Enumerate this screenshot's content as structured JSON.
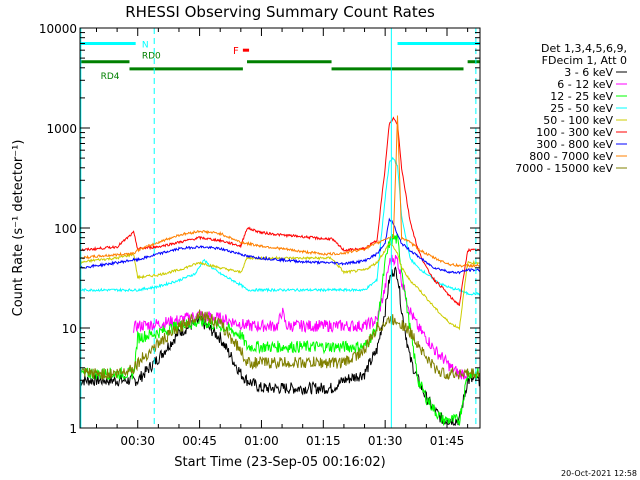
{
  "chart_data": {
    "type": "line",
    "title": "RHESSI Observing Summary Count Rates",
    "xlabel": "Start Time (23-Sep-05 00:16:02)",
    "ylabel": "Count Rate (s⁻¹ detector⁻¹)",
    "yscale": "log",
    "ylim": [
      1,
      10000
    ],
    "xlim_minutes": [
      16,
      113
    ],
    "x_ticks": [
      {
        "label": "00:30",
        "minutes": 30
      },
      {
        "label": "00:45",
        "minutes": 45
      },
      {
        "label": "01:00",
        "minutes": 60
      },
      {
        "label": "01:15",
        "minutes": 75
      },
      {
        "label": "01:30",
        "minutes": 90
      },
      {
        "label": "01:45",
        "minutes": 105
      }
    ],
    "y_ticks": [
      {
        "label": "1",
        "value": 1
      },
      {
        "label": "10",
        "value": 10
      },
      {
        "label": "100",
        "value": 100
      },
      {
        "label": "1000",
        "value": 1000
      },
      {
        "label": "10000",
        "value": 10000
      }
    ],
    "legend_header": [
      "Det 1,3,4,5,6,9,",
      "FDecim 1, Att 0"
    ],
    "legend_position": "right",
    "series": [
      {
        "name": "3 - 6 keV",
        "color": "#000000",
        "x": [
          16,
          20,
          25,
          29,
          30,
          35,
          40,
          45,
          50,
          55,
          56.5,
          60,
          65,
          70,
          75,
          77,
          80,
          85,
          88,
          90,
          91,
          92,
          93,
          94,
          96,
          98,
          100,
          102,
          104,
          106,
          108,
          110,
          113
        ],
        "y": [
          3,
          3,
          3,
          3,
          3,
          5,
          9,
          12,
          8,
          3.5,
          3,
          2.5,
          2.5,
          2.5,
          2.5,
          2.5,
          3,
          3.5,
          6,
          15,
          30,
          38,
          35,
          15,
          5,
          3,
          2,
          1.5,
          1.2,
          1.2,
          1.2,
          3,
          3
        ]
      },
      {
        "name": "6 - 12 keV",
        "color": "#ff00ff",
        "x": [
          29,
          30,
          35,
          40,
          45,
          50,
          55,
          56.5,
          60,
          64,
          65,
          66,
          70,
          75,
          77,
          80,
          85,
          88,
          90,
          91,
          92,
          93,
          94,
          96,
          98,
          100,
          102,
          104,
          106,
          108,
          110
        ],
        "y": [
          10,
          10.5,
          11,
          12,
          13.5,
          12.5,
          11,
          10.5,
          10.5,
          10.5,
          15,
          10.5,
          10.5,
          10.5,
          10.5,
          10.5,
          10.5,
          12,
          25,
          45,
          50,
          48,
          30,
          15,
          10,
          8,
          6,
          5,
          4,
          3.5,
          3.5
        ]
      },
      {
        "name": "12 - 25 keV",
        "color": "#00ff00",
        "x": [
          16,
          20,
          25,
          29,
          30,
          35,
          40,
          45,
          50,
          55,
          56.5,
          60,
          65,
          70,
          75,
          77,
          80,
          85,
          88,
          90,
          91,
          92,
          93,
          94,
          96,
          98,
          100,
          102,
          104,
          106,
          108,
          110,
          113
        ],
        "y": [
          3.5,
          3.5,
          3.5,
          3.5,
          8,
          9,
          10.5,
          11.5,
          10.5,
          8.5,
          6.5,
          6.5,
          6.5,
          6.5,
          6.5,
          6.5,
          6.5,
          6.5,
          10,
          45,
          70,
          80,
          75,
          40,
          10,
          3,
          2,
          1.5,
          1.2,
          1.2,
          1.2,
          3.5,
          3.5
        ]
      },
      {
        "name": "25 - 50 keV",
        "color": "#00ffff",
        "x": [
          16,
          20,
          25,
          29,
          30,
          35,
          40,
          44,
          46,
          48,
          50,
          55,
          56.5,
          60,
          65,
          70,
          75,
          77,
          80,
          85,
          88,
          90,
          91,
          92,
          93,
          94,
          96,
          98,
          100,
          102,
          104,
          106,
          108,
          110,
          113
        ],
        "y": [
          24,
          24,
          24,
          24,
          24,
          26,
          30,
          35,
          48,
          40,
          35,
          27,
          24,
          24,
          24,
          24,
          24,
          24,
          24,
          24,
          30,
          200,
          450,
          500,
          420,
          130,
          50,
          40,
          35,
          30,
          27,
          25,
          24,
          22,
          22
        ]
      },
      {
        "name": "50 - 100 keV",
        "color": "#cccc00",
        "x": [
          16,
          20,
          25,
          29,
          30,
          35,
          40,
          45,
          50,
          55,
          56.5,
          60,
          65,
          70,
          75,
          77,
          80,
          85,
          88,
          90,
          91,
          92,
          93,
          94,
          96,
          98,
          100,
          102,
          104,
          106,
          108,
          110,
          113
        ],
        "y": [
          45,
          48,
          50,
          55,
          32,
          34,
          38,
          45,
          40,
          36,
          50,
          50,
          50,
          50,
          50,
          50,
          36,
          38,
          45,
          60,
          70,
          65,
          55,
          40,
          30,
          25,
          20,
          16,
          13,
          11,
          10,
          45,
          45
        ]
      },
      {
        "name": "100 - 300 keV",
        "color": "#ff0000",
        "x": [
          16,
          20,
          25,
          29,
          30,
          35,
          40,
          45,
          50,
          55,
          56.5,
          60,
          65,
          70,
          75,
          77,
          80,
          85,
          88,
          90,
          91,
          92,
          93,
          94,
          96,
          98,
          100,
          102,
          104,
          106,
          108,
          110,
          113
        ],
        "y": [
          60,
          62,
          65,
          90,
          62,
          65,
          72,
          80,
          75,
          66,
          100,
          90,
          85,
          82,
          78,
          78,
          60,
          62,
          75,
          400,
          1100,
          1250,
          1100,
          400,
          120,
          60,
          40,
          30,
          25,
          20,
          17,
          60,
          60
        ]
      },
      {
        "name": "300 - 800 keV",
        "color": "#0000ff",
        "x": [
          16,
          20,
          25,
          29,
          30,
          35,
          40,
          45,
          50,
          55,
          56.5,
          60,
          65,
          70,
          75,
          77,
          80,
          85,
          88,
          90,
          91,
          92,
          93,
          94,
          96,
          98,
          100,
          102,
          104,
          106,
          108,
          110,
          113
        ],
        "y": [
          40,
          42,
          45,
          48,
          48,
          55,
          62,
          65,
          62,
          55,
          52,
          50,
          48,
          46,
          45,
          45,
          44,
          47,
          55,
          70,
          125,
          110,
          85,
          70,
          60,
          52,
          45,
          40,
          38,
          36,
          36,
          38,
          38
        ]
      },
      {
        "name": "800 - 7000 keV",
        "color": "#ff8000",
        "x": [
          16,
          20,
          25,
          29,
          30,
          35,
          40,
          45,
          50,
          55,
          56.5,
          60,
          65,
          70,
          75,
          77,
          80,
          85,
          88,
          90,
          91,
          92,
          93,
          94,
          96,
          98,
          100,
          102,
          104,
          106,
          108,
          110,
          113
        ],
        "y": [
          50,
          52,
          54,
          56,
          60,
          72,
          85,
          93,
          88,
          72,
          70,
          66,
          62,
          58,
          55,
          55,
          56,
          62,
          70,
          78,
          80,
          82,
          1300,
          80,
          72,
          62,
          55,
          50,
          46,
          43,
          42,
          42,
          42
        ]
      },
      {
        "name": "7000 - 15000 keV",
        "color": "#808000",
        "x": [
          16,
          20,
          25,
          29,
          30,
          35,
          40,
          45,
          50,
          55,
          56.5,
          60,
          65,
          70,
          75,
          77,
          80,
          85,
          88,
          90,
          91,
          92,
          93,
          94,
          96,
          98,
          100,
          102,
          104,
          106,
          108,
          110,
          113
        ],
        "y": [
          3.5,
          3.5,
          3.5,
          4,
          4.5,
          7,
          10,
          14,
          11,
          6,
          4.5,
          4.5,
          4.5,
          4.5,
          4.5,
          4.5,
          4.5,
          6,
          10,
          11,
          12,
          12,
          12,
          11,
          9,
          7,
          5,
          4,
          3.5,
          3.5,
          3.5,
          3.5,
          3.5
        ]
      }
    ],
    "annotations": [
      {
        "text": "N",
        "color": "#00ffff"
      },
      {
        "text": "F",
        "color": "#ff0000"
      },
      {
        "text": "RD0",
        "color": "#008000"
      },
      {
        "text": "RD4",
        "color": "#008000"
      }
    ],
    "flag_bars": [
      {
        "label": "N",
        "color": "#00ffff",
        "y": 7000,
        "segments": [
          [
            16,
            29.5
          ],
          [
            93,
            113
          ]
        ]
      },
      {
        "label": "F",
        "color": "#ff0000",
        "y": 6000,
        "segments": [
          [
            55.5,
            57
          ]
        ]
      },
      {
        "label": "RD0",
        "color": "#008000",
        "y": 4600,
        "segments": [
          [
            16,
            28
          ],
          [
            56.5,
            77
          ],
          [
            110,
            113
          ]
        ]
      },
      {
        "label": "RD4",
        "color": "#008000",
        "y": 3900,
        "segments": [
          [
            28,
            55.5
          ],
          [
            77,
            109
          ]
        ]
      }
    ],
    "vertical_lines": [
      {
        "x": 16.2,
        "color": "#00ffff",
        "style": "solid"
      },
      {
        "x": 34,
        "color": "#00ffff",
        "style": "dashed"
      },
      {
        "x": 91.5,
        "color": "#00ffff",
        "style": "solid"
      },
      {
        "x": 112,
        "color": "#00ffff",
        "style": "dashed"
      }
    ],
    "footer": "20-Oct-2021 12:58"
  }
}
